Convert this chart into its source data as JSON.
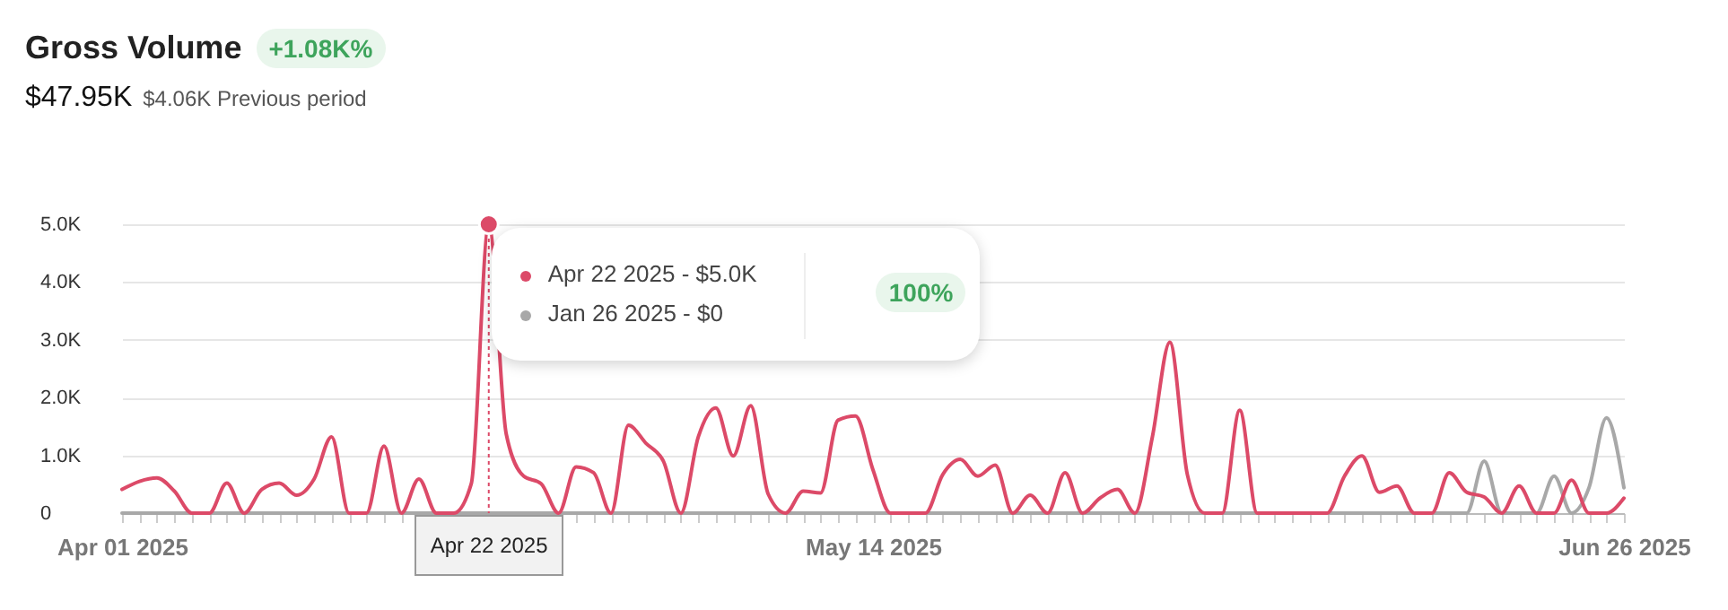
{
  "chart_data": {
    "type": "line",
    "title": "Gross Volume",
    "subtitle": "$47.95K",
    "annotations": [
      {
        "text": "Apr 22 2025 - $5.0K",
        "x": "2025-04-22",
        "y": 5000
      },
      "Jan 26 2025 - $0",
      "100%",
      "+1.08K%",
      "$4.06K Previous period"
    ],
    "x": [
      "2025-04-01",
      "2025-04-02",
      "2025-04-03",
      "2025-04-04",
      "2025-04-05",
      "2025-04-06",
      "2025-04-07",
      "2025-04-08",
      "2025-04-09",
      "2025-04-10",
      "2025-04-11",
      "2025-04-12",
      "2025-04-13",
      "2025-04-14",
      "2025-04-15",
      "2025-04-16",
      "2025-04-17",
      "2025-04-18",
      "2025-04-19",
      "2025-04-20",
      "2025-04-21",
      "2025-04-22",
      "2025-04-23",
      "2025-04-24",
      "2025-04-25",
      "2025-04-26",
      "2025-04-27",
      "2025-04-28",
      "2025-04-29",
      "2025-04-30",
      "2025-05-01",
      "2025-05-02",
      "2025-05-03",
      "2025-05-04",
      "2025-05-05",
      "2025-05-06",
      "2025-05-07",
      "2025-05-08",
      "2025-05-09",
      "2025-05-10",
      "2025-05-11",
      "2025-05-12",
      "2025-05-13",
      "2025-05-14",
      "2025-05-15",
      "2025-05-16",
      "2025-05-17",
      "2025-05-18",
      "2025-05-19",
      "2025-05-20",
      "2025-05-21",
      "2025-05-22",
      "2025-05-23",
      "2025-05-24",
      "2025-05-25",
      "2025-05-26",
      "2025-05-27",
      "2025-05-28",
      "2025-05-29",
      "2025-05-30",
      "2025-05-31",
      "2025-06-01",
      "2025-06-02",
      "2025-06-03",
      "2025-06-04",
      "2025-06-05",
      "2025-06-06",
      "2025-06-07",
      "2025-06-08",
      "2025-06-09",
      "2025-06-10",
      "2025-06-11",
      "2025-06-12",
      "2025-06-13",
      "2025-06-14",
      "2025-06-15",
      "2025-06-16",
      "2025-06-17",
      "2025-06-18",
      "2025-06-19",
      "2025-06-20",
      "2025-06-21",
      "2025-06-22",
      "2025-06-23",
      "2025-06-24",
      "2025-06-25",
      "2025-06-26"
    ],
    "series": [
      {
        "color": "#a8a8a8",
        "values": [
          0,
          0,
          0,
          0,
          0,
          0,
          0,
          0,
          0,
          0,
          0,
          0,
          0,
          0,
          0,
          0,
          0,
          0,
          0,
          0,
          0,
          0,
          0,
          0,
          0,
          0,
          0,
          0,
          0,
          0,
          0,
          0,
          0,
          0,
          0,
          0,
          0,
          0,
          0,
          0,
          0,
          0,
          0,
          0,
          0,
          0,
          0,
          0,
          0,
          0,
          0,
          0,
          0,
          0,
          0,
          0,
          0,
          0,
          0,
          0,
          0,
          0,
          0,
          0,
          0,
          0,
          0,
          0,
          0,
          0,
          0,
          0,
          0,
          0,
          0,
          0,
          0,
          0,
          900,
          0,
          0,
          0,
          640,
          0,
          440,
          1650,
          440
        ]
      },
      {
        "color": "#dc4a68",
        "values": [
          410,
          550,
          610,
          380,
          0,
          0,
          520,
          0,
          410,
          520,
          310,
          590,
          1320,
          0,
          0,
          1160,
          0,
          590,
          0,
          0,
          510,
          5000,
          1370,
          640,
          510,
          0,
          800,
          700,
          0,
          1520,
          1210,
          900,
          0,
          1320,
          1820,
          990,
          1860,
          330,
          0,
          380,
          350,
          1610,
          1680,
          750,
          0,
          0,
          0,
          670,
          930,
          640,
          830,
          0,
          310,
          0,
          700,
          0,
          260,
          410,
          0,
          1320,
          2960,
          670,
          0,
          0,
          1780,
          0,
          0,
          0,
          0,
          0,
          640,
          990,
          360,
          470,
          0,
          0,
          700,
          360,
          280,
          0,
          470,
          0,
          0,
          570,
          0,
          0,
          260
        ]
      }
    ],
    "xlim": [
      "2025-04-01",
      "2025-06-26"
    ],
    "xticks": [
      {
        "value": "2025-04-01",
        "label": "Apr 01 2025"
      },
      {
        "value": "2025-04-02",
        "label": null
      },
      {
        "value": "2025-04-03",
        "label": null
      },
      {
        "value": "2025-04-04",
        "label": null
      },
      {
        "value": "2025-04-05",
        "label": null
      },
      {
        "value": "2025-04-06",
        "label": null
      },
      {
        "value": "2025-04-07",
        "label": null
      },
      {
        "value": "2025-04-08",
        "label": null
      },
      {
        "value": "2025-04-09",
        "label": null
      },
      {
        "value": "2025-04-10",
        "label": null
      },
      {
        "value": "2025-04-11",
        "label": null
      },
      {
        "value": "2025-04-12",
        "label": null
      },
      {
        "value": "2025-04-13",
        "label": null
      },
      {
        "value": "2025-04-14",
        "label": null
      },
      {
        "value": "2025-04-15",
        "label": null
      },
      {
        "value": "2025-04-16",
        "label": null
      },
      {
        "value": "2025-04-17",
        "label": null
      },
      {
        "value": "2025-04-18",
        "label": null
      },
      {
        "value": "2025-04-19",
        "label": null
      },
      {
        "value": "2025-04-20",
        "label": null
      },
      {
        "value": "2025-04-21",
        "label": null
      },
      {
        "value": "2025-04-22",
        "label": null
      },
      {
        "value": "2025-04-23",
        "label": null
      },
      {
        "value": "2025-04-24",
        "label": null
      },
      {
        "value": "2025-04-25",
        "label": null
      },
      {
        "value": "2025-04-26",
        "label": null
      },
      {
        "value": "2025-04-27",
        "label": null
      },
      {
        "value": "2025-04-28",
        "label": null
      },
      {
        "value": "2025-04-29",
        "label": null
      },
      {
        "value": "2025-04-30",
        "label": null
      },
      {
        "value": "2025-05-01",
        "label": null
      },
      {
        "value": "2025-05-02",
        "label": null
      },
      {
        "value": "2025-05-03",
        "label": null
      },
      {
        "value": "2025-05-04",
        "label": null
      },
      {
        "value": "2025-05-05",
        "label": null
      },
      {
        "value": "2025-05-06",
        "label": null
      },
      {
        "value": "2025-05-07",
        "label": null
      },
      {
        "value": "2025-05-08",
        "label": null
      },
      {
        "value": "2025-05-09",
        "label": null
      },
      {
        "value": "2025-05-10",
        "label": null
      },
      {
        "value": "2025-05-11",
        "label": null
      },
      {
        "value": "2025-05-12",
        "label": null
      },
      {
        "value": "2025-05-13",
        "label": null
      },
      {
        "value": "2025-05-14",
        "label": "May 14 2025"
      },
      {
        "value": "2025-05-15",
        "label": null
      },
      {
        "value": "2025-05-16",
        "label": null
      },
      {
        "value": "2025-05-17",
        "label": null
      },
      {
        "value": "2025-05-18",
        "label": null
      },
      {
        "value": "2025-05-19",
        "label": null
      },
      {
        "value": "2025-05-20",
        "label": null
      },
      {
        "value": "2025-05-21",
        "label": null
      },
      {
        "value": "2025-05-22",
        "label": null
      },
      {
        "value": "2025-05-23",
        "label": null
      },
      {
        "value": "2025-05-24",
        "label": null
      },
      {
        "value": "2025-05-25",
        "label": null
      },
      {
        "value": "2025-05-26",
        "label": null
      },
      {
        "value": "2025-05-27",
        "label": null
      },
      {
        "value": "2025-05-28",
        "label": null
      },
      {
        "value": "2025-05-29",
        "label": null
      },
      {
        "value": "2025-05-30",
        "label": null
      },
      {
        "value": "2025-05-31",
        "label": null
      },
      {
        "value": "2025-06-01",
        "label": null
      },
      {
        "value": "2025-06-02",
        "label": null
      },
      {
        "value": "2025-06-03",
        "label": null
      },
      {
        "value": "2025-06-04",
        "label": null
      },
      {
        "value": "2025-06-05",
        "label": null
      },
      {
        "value": "2025-06-06",
        "label": null
      },
      {
        "value": "2025-06-07",
        "label": null
      },
      {
        "value": "2025-06-08",
        "label": null
      },
      {
        "value": "2025-06-09",
        "label": null
      },
      {
        "value": "2025-06-10",
        "label": null
      },
      {
        "value": "2025-06-11",
        "label": null
      },
      {
        "value": "2025-06-12",
        "label": null
      },
      {
        "value": "2025-06-13",
        "label": null
      },
      {
        "value": "2025-06-14",
        "label": null
      },
      {
        "value": "2025-06-15",
        "label": null
      },
      {
        "value": "2025-06-16",
        "label": null
      },
      {
        "value": "2025-06-17",
        "label": null
      },
      {
        "value": "2025-06-18",
        "label": null
      },
      {
        "value": "2025-06-19",
        "label": null
      },
      {
        "value": "2025-06-20",
        "label": null
      },
      {
        "value": "2025-06-21",
        "label": null
      },
      {
        "value": "2025-06-22",
        "label": null
      },
      {
        "value": "2025-06-23",
        "label": null
      },
      {
        "value": "2025-06-24",
        "label": null
      },
      {
        "value": "2025-06-25",
        "label": null
      },
      {
        "value": "2025-06-26",
        "label": "Jun 26 2025"
      }
    ],
    "ylim": [
      0,
      5000
    ],
    "yticks": [
      {
        "value": 0,
        "label": "0"
      },
      {
        "value": 1000,
        "label": "1.0K"
      },
      {
        "value": 2000,
        "label": "2.0K"
      },
      {
        "value": 3000,
        "label": "3.0K"
      },
      {
        "value": 4000,
        "label": "4.0K"
      },
      {
        "value": 5000,
        "label": "5.0K"
      }
    ],
    "grid": "y",
    "ref_lines": [
      {
        "axis": "x",
        "value": "2025-04-22",
        "label": "Apr 22 2025",
        "color": "#dc4a68",
        "line_style": "dotted"
      }
    ]
  }
}
